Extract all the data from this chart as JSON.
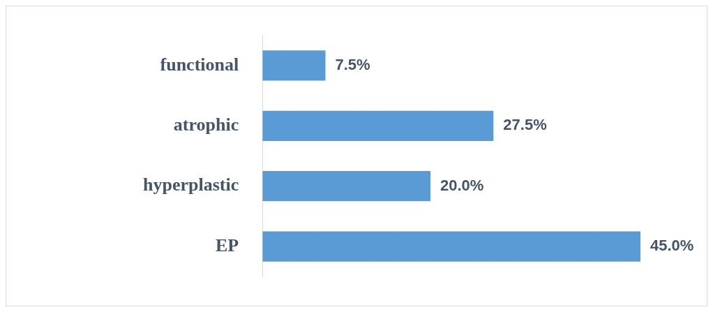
{
  "chart_data": {
    "type": "bar",
    "orientation": "horizontal",
    "categories": [
      "functional",
      "atrophic",
      "hyperplastic",
      "EP"
    ],
    "values": [
      7.5,
      27.5,
      20.0,
      45.0
    ],
    "color": "#5b9bd5",
    "value_labels": [
      "7.5%",
      "27.5%",
      "20.0%",
      "45.0%"
    ],
    "legend": false
  }
}
